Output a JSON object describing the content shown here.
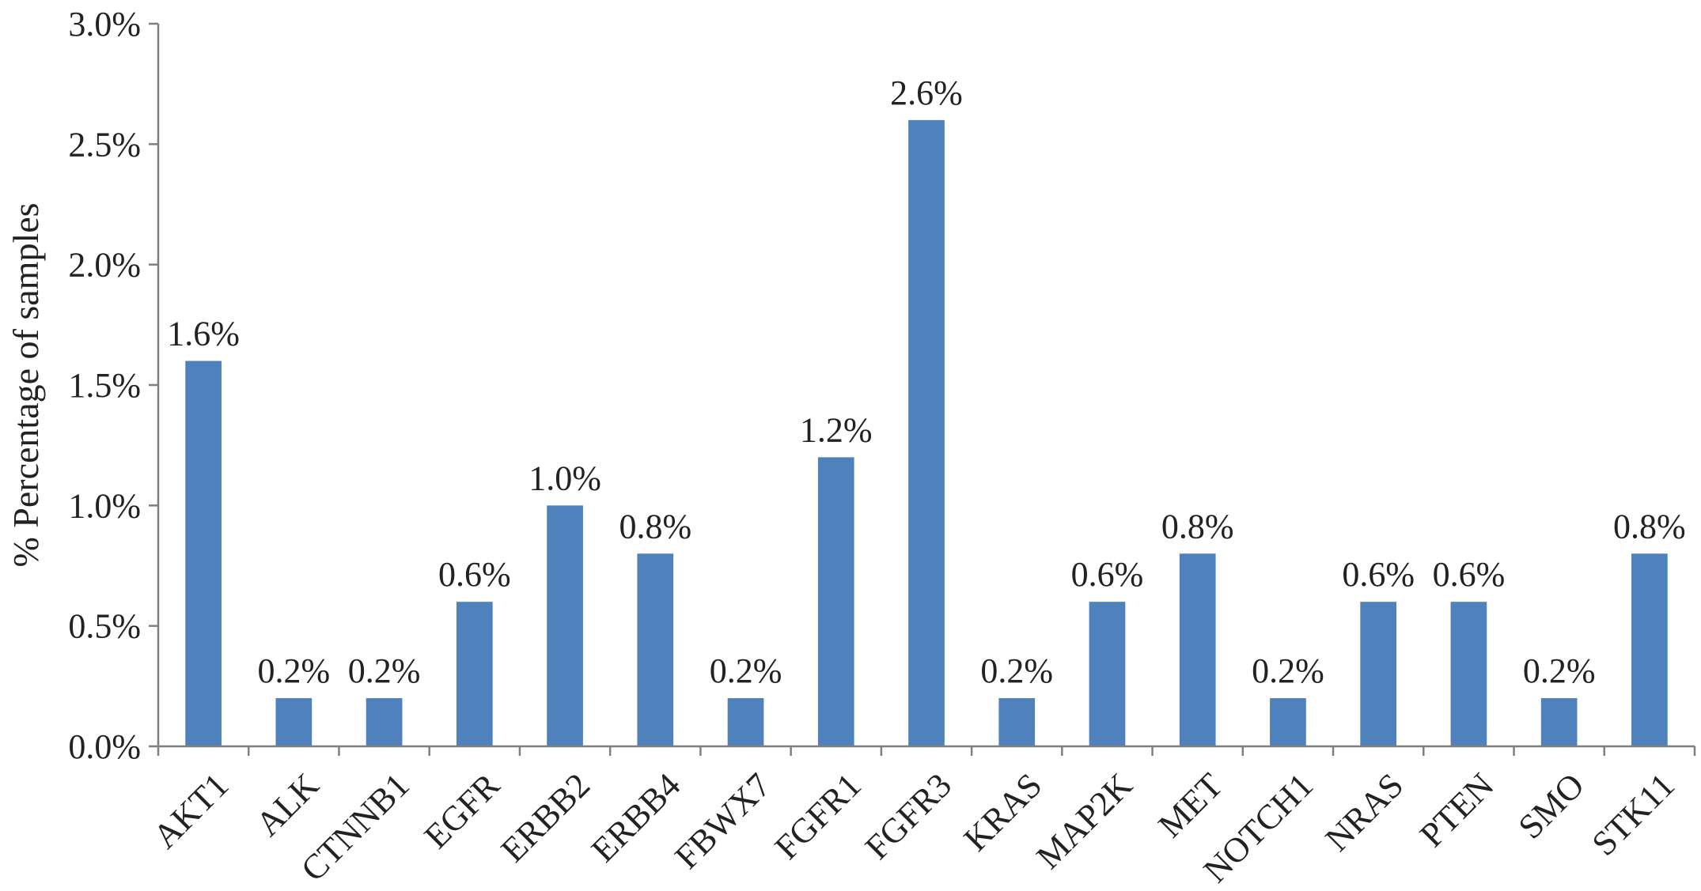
{
  "chart_data": {
    "type": "bar",
    "ylabel": "% Percentage of samples",
    "xlabel": "",
    "categories": [
      "AKT1",
      "ALK",
      "CTNNB1",
      "EGFR",
      "ERBB2",
      "ERBB4",
      "FBWX7",
      "FGFR1",
      "FGFR3",
      "KRAS",
      "MAP2K",
      "MET",
      "NOTCH1",
      "NRAS",
      "PTEN",
      "SMO",
      "STK11"
    ],
    "values": [
      1.6,
      0.2,
      0.2,
      0.6,
      1.0,
      0.8,
      0.2,
      1.2,
      2.6,
      0.2,
      0.6,
      0.8,
      0.2,
      0.6,
      0.6,
      0.2,
      0.8
    ],
    "data_labels": [
      "1.6%",
      "0.2%",
      "0.2%",
      "0.6%",
      "1.0%",
      "0.8%",
      "0.2%",
      "1.2%",
      "2.6%",
      "0.2%",
      "0.6%",
      "0.8%",
      "0.2%",
      "0.6%",
      "0.6%",
      "0.2%",
      "0.8%"
    ],
    "ylim": [
      0,
      3.0
    ],
    "yticks": [
      0.0,
      0.5,
      1.0,
      1.5,
      2.0,
      2.5,
      3.0
    ],
    "ytick_labels": [
      "0.0%",
      "0.5%",
      "1.0%",
      "1.5%",
      "2.0%",
      "2.5%",
      "3.0%"
    ],
    "grid": false,
    "legend": "none",
    "bar_color": "#4F81BD"
  }
}
